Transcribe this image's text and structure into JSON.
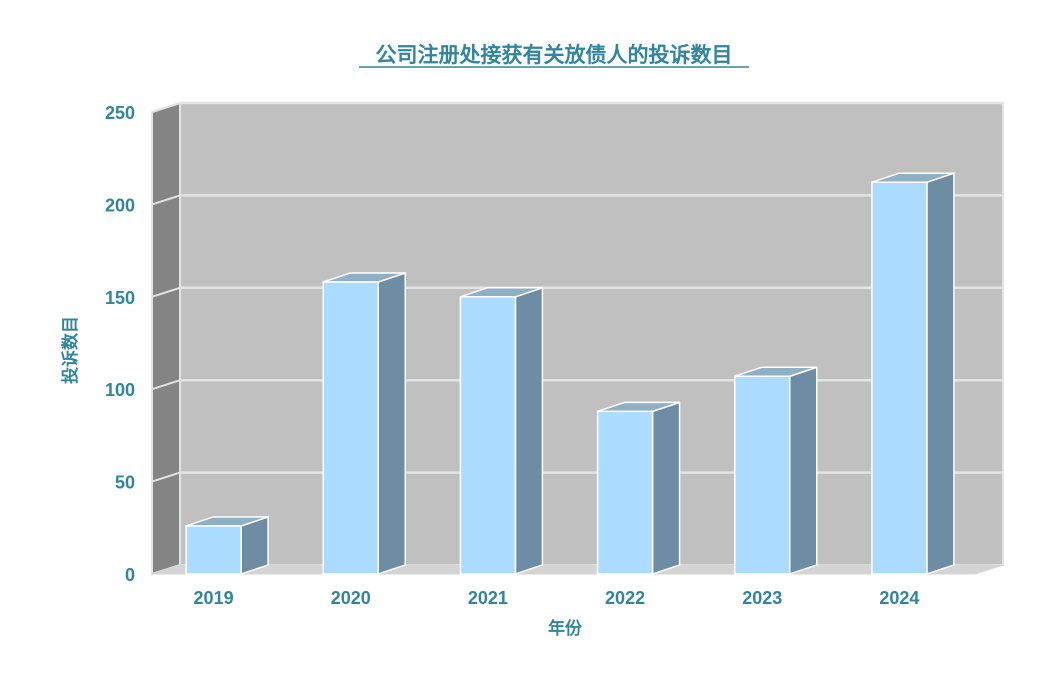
{
  "chart_data": {
    "type": "bar",
    "title": "公司注册处接获有关放债人的投诉数目",
    "xlabel": "年份",
    "ylabel": "投诉数目",
    "categories": [
      "2019",
      "2020",
      "2021",
      "2022",
      "2023",
      "2024"
    ],
    "values": [
      26,
      158,
      150,
      88,
      107,
      212
    ],
    "ylim": [
      0,
      250
    ],
    "yticks": [
      0,
      50,
      100,
      150,
      200,
      250
    ],
    "grid": true,
    "legend": "none",
    "colors": {
      "bar_front": "#abdcff",
      "bar_side": "#6e8ca3",
      "bar_top": "#8fafc4",
      "back_wall": "#c0c0c0",
      "side_wall": "#848484",
      "floor": "#d4d4d4",
      "grid": "#e3e3e3",
      "text": "#31859c"
    }
  }
}
